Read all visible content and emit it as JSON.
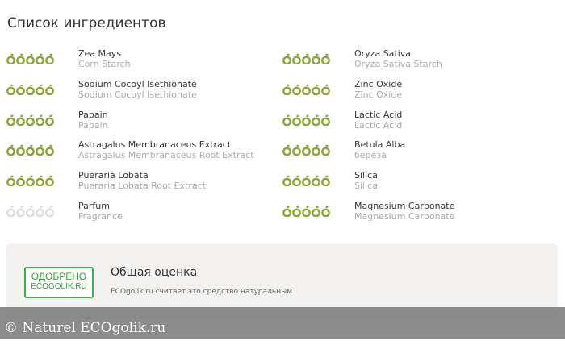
{
  "title": "Список ингредиентов",
  "colors": {
    "rated": "#8aa33a",
    "unrated": "#dddddd"
  },
  "left": [
    {
      "name": "Zea Mays",
      "sub": "Corn Starch",
      "rating": 5
    },
    {
      "name": "Sodium Cocoyl Isethionate",
      "sub": "Sodium Cocoyl Isethionate",
      "rating": 5
    },
    {
      "name": "Papain",
      "sub": "Papain",
      "rating": 5
    },
    {
      "name": "Astragalus Membranaceus Extract",
      "sub": "Astragalus Membranaceus Root Extract",
      "rating": 5
    },
    {
      "name": "Pueraria Lobata",
      "sub": "Pueraria Lobata Root Extract",
      "rating": 5
    },
    {
      "name": "Parfum",
      "sub": "Fragrance",
      "rating": 0
    }
  ],
  "right": [
    {
      "name": "Oryza Sativa",
      "sub": "Oryza Sativa Starch",
      "rating": 5
    },
    {
      "name": "Zinc Oxide",
      "sub": "Zinc Oxide",
      "rating": 5
    },
    {
      "name": "Lactic Acid",
      "sub": "Lactic Acid",
      "rating": 5
    },
    {
      "name": "Betula Alba",
      "sub": "береза",
      "rating": 5
    },
    {
      "name": "Silica",
      "sub": "Silica",
      "rating": 5
    },
    {
      "name": "Magnesium Carbonate",
      "sub": "Magnesium Carbonate",
      "rating": 5
    }
  ],
  "summary": {
    "badge_line1": "ОДОБРЕНО",
    "badge_line2": "ECOGOLIK.RU",
    "title": "Общая оценка",
    "description": "ECOgolik.ru считает это средство натуральным"
  },
  "watermark": "© Naturel  ECOgolik.ru"
}
